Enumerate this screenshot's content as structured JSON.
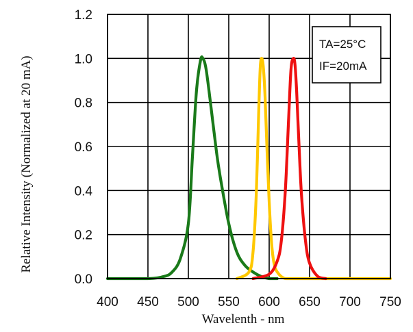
{
  "chart_data": {
    "type": "line",
    "xlabel": "Wavelenth - nm",
    "ylabel": "Relative Intensity (Normalized at 20 mA)",
    "xlim": [
      400,
      750
    ],
    "ylim": [
      0,
      1.2
    ],
    "x_ticks": [
      "400",
      "450",
      "500",
      "550",
      "600",
      "650",
      "700",
      "750"
    ],
    "y_ticks": [
      "0.0",
      "0.2",
      "0.4",
      "0.6",
      "0.8",
      "1.0",
      "1.2"
    ],
    "grid": true,
    "legend_box": {
      "position": "top-right",
      "lines": [
        "TA=25°C",
        "IF=20mA"
      ]
    },
    "series": [
      {
        "color": "#1a7a1a",
        "x": [
          400,
          450,
          470,
          480,
          490,
          500,
          505,
          510,
          515,
          518,
          522,
          528,
          535,
          540,
          550,
          560,
          570,
          580,
          590,
          600,
          610
        ],
        "y": [
          0.0,
          0.0,
          0.01,
          0.03,
          0.09,
          0.25,
          0.55,
          0.85,
          0.99,
          1.0,
          0.95,
          0.78,
          0.57,
          0.45,
          0.25,
          0.12,
          0.06,
          0.03,
          0.01,
          0.0,
          0.0
        ]
      },
      {
        "color": "#ffc800",
        "x": [
          560,
          575,
          580,
          584,
          587,
          589,
          591,
          593,
          595,
          597,
          600,
          603,
          606,
          610,
          620,
          640,
          660,
          750
        ],
        "y": [
          0.0,
          0.03,
          0.12,
          0.38,
          0.75,
          0.96,
          1.0,
          0.95,
          0.82,
          0.62,
          0.35,
          0.16,
          0.07,
          0.03,
          0.0,
          0.0,
          0.0,
          0.0
        ]
      },
      {
        "color": "#ee1111",
        "x": [
          580,
          600,
          610,
          615,
          620,
          624,
          627,
          630,
          632,
          634,
          637,
          640,
          645,
          650,
          660,
          670
        ],
        "y": [
          0.0,
          0.02,
          0.08,
          0.17,
          0.4,
          0.72,
          0.95,
          1.0,
          0.97,
          0.85,
          0.6,
          0.38,
          0.17,
          0.07,
          0.01,
          0.0
        ]
      }
    ]
  }
}
